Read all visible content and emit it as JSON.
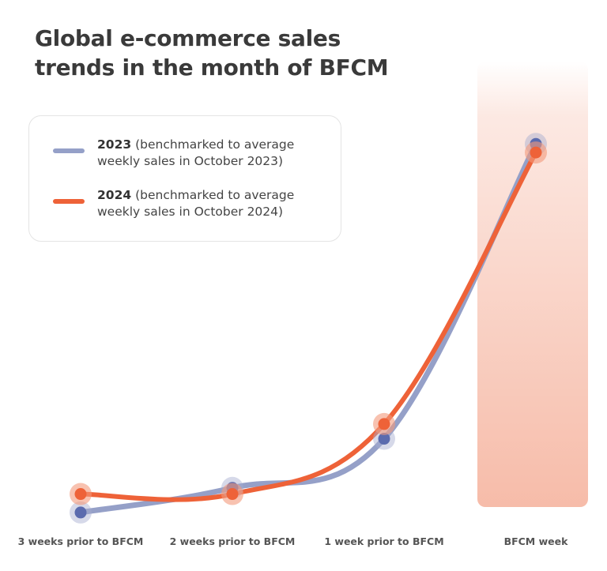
{
  "title_line1": "Global e-commerce sales",
  "title_line2": "trends in the month of BFCM",
  "legend": [
    {
      "year": "2023",
      "text_line1": "(benchmarked to average",
      "text_line2": "weekly sales in October 2023)",
      "color": "#95A0C8"
    },
    {
      "year": "2024",
      "text_line1": "(benchmarked to average",
      "text_line2": "weekly sales in October 2024)",
      "color": "#EE6238"
    }
  ],
  "chart_data": {
    "type": "line",
    "title": "Global e-commerce sales trends in the month of BFCM",
    "categories": [
      "3 weeks prior to BFCM",
      "2 weeks prior to BFCM",
      "1 week prior to BFCM",
      "BFCM week"
    ],
    "series": [
      {
        "name": "2023 (benchmarked to average weekly sales in October 2023)",
        "values": [
          0.8,
          1.0,
          1.4,
          3.8
        ],
        "color": "#95A0C8",
        "marker_color": "#5B6BAE"
      },
      {
        "name": "2024 (benchmarked to average weekly sales in October 2024)",
        "values": [
          0.95,
          0.95,
          1.52,
          3.73
        ],
        "color": "#EE6238",
        "marker_color": "#EE6238"
      }
    ],
    "ylim": [
      0.6,
      4.2
    ],
    "highlight_category": "BFCM week",
    "highlight_color": "#F5B09A",
    "xlabel": "",
    "ylabel": "",
    "grid": false
  }
}
